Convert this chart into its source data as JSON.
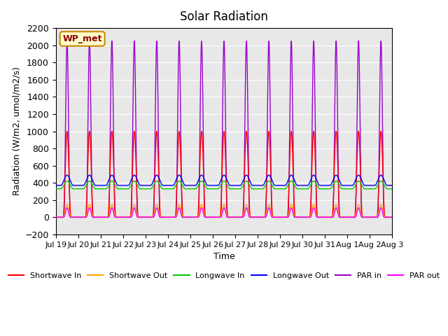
{
  "title": "Solar Radiation",
  "ylabel": "Radiation (W/m2, umol/m2/s)",
  "xlabel": "Time",
  "ylim": [
    -200,
    2200
  ],
  "yticks": [
    -200,
    0,
    200,
    400,
    600,
    800,
    1000,
    1200,
    1400,
    1600,
    1800,
    2000,
    2200
  ],
  "xtick_labels": [
    "Jul 19",
    "Jul 20",
    "Jul 21",
    "Jul 22",
    "Jul 23",
    "Jul 24",
    "Jul 25",
    "Jul 26",
    "Jul 27",
    "Jul 28",
    "Jul 29",
    "Jul 30",
    "Jul 31",
    "Aug 1",
    "Aug 2",
    "Aug 3"
  ],
  "n_days": 15,
  "shortwave_in_peak": 1000,
  "shortwave_out_peak": 150,
  "longwave_in_base": 330,
  "longwave_in_peak": 420,
  "longwave_out_base": 370,
  "longwave_out_peak": 490,
  "par_in_peak": 2050,
  "par_out_peak": 110,
  "colors": {
    "shortwave_in": "#FF0000",
    "shortwave_out": "#FFA500",
    "longwave_in": "#00CC00",
    "longwave_out": "#0000FF",
    "par_in": "#9900CC",
    "par_out": "#FF00FF"
  },
  "background_color": "#E8E8E8",
  "annotation_text": "WP_met",
  "annotation_bg": "#FFFFCC",
  "annotation_border": "#CC8800",
  "legend_labels": [
    "Shortwave In",
    "Shortwave Out",
    "Longwave In",
    "Longwave Out",
    "PAR in",
    "PAR out"
  ]
}
